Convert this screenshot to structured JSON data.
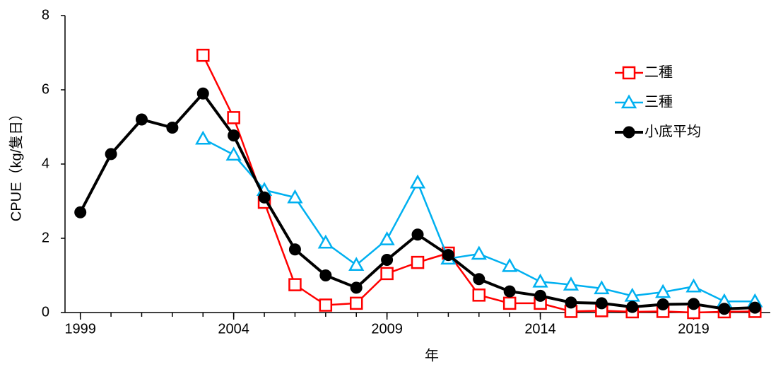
{
  "chart_data": {
    "type": "line",
    "xlabel": "年",
    "ylabel": "CPUE（kg/隻日）",
    "x": [
      1999,
      2000,
      2001,
      2002,
      2003,
      2004,
      2005,
      2006,
      2007,
      2008,
      2009,
      2010,
      2011,
      2012,
      2013,
      2014,
      2015,
      2016,
      2017,
      2018,
      2019,
      2020,
      2021
    ],
    "series": [
      {
        "name": "二種",
        "color": "#ff0000",
        "marker": "square",
        "values": [
          null,
          null,
          null,
          null,
          6.93,
          5.25,
          2.97,
          0.75,
          0.2,
          0.25,
          1.05,
          1.35,
          1.6,
          0.47,
          0.25,
          0.25,
          0.03,
          0.05,
          0.02,
          0.03,
          0.0,
          0.02,
          0.03
        ]
      },
      {
        "name": "三種",
        "color": "#00b0f0",
        "marker": "triangle",
        "values": [
          null,
          null,
          null,
          null,
          4.68,
          4.25,
          3.3,
          3.1,
          1.88,
          1.28,
          1.97,
          3.5,
          1.45,
          1.58,
          1.25,
          0.83,
          0.75,
          0.65,
          0.45,
          0.55,
          0.7,
          0.3,
          0.3
        ]
      },
      {
        "name": "小底平均",
        "color": "#000000",
        "marker": "circle",
        "values": [
          2.7,
          4.27,
          5.2,
          4.98,
          5.9,
          4.77,
          3.1,
          1.7,
          1.0,
          0.67,
          1.42,
          2.1,
          1.55,
          0.9,
          0.57,
          0.45,
          0.27,
          0.25,
          0.15,
          0.22,
          0.23,
          0.1,
          0.13
        ]
      }
    ],
    "xlim": [
      1998.5,
      2021.5
    ],
    "xticks": [
      1999,
      2004,
      2009,
      2014,
      2019
    ],
    "ylim": [
      0,
      8
    ],
    "yticks": [
      0,
      2,
      4,
      6,
      8
    ],
    "legend": "upper-right"
  }
}
